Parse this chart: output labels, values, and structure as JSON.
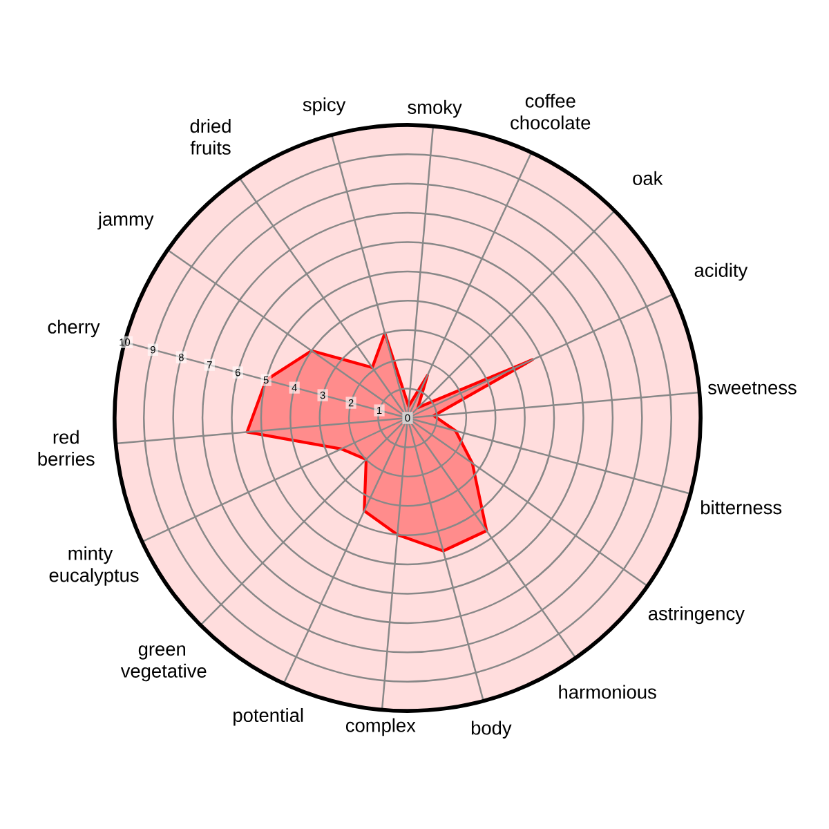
{
  "chart_data": {
    "type": "radar",
    "categories": [
      "smoky",
      "coffee chocolate",
      "oak",
      "acidity",
      "sweetness",
      "bitterness",
      "astringency",
      "harmonious",
      "body",
      "complex",
      "potential",
      "green vegetative",
      "minty eucalyptus",
      "red berries",
      "cherry",
      "jammy",
      "dried fruits",
      "spicy"
    ],
    "series": [
      {
        "color": "#ff0000",
        "values": [
          0.4,
          1.6,
          0.5,
          4.7,
          0.9,
          1.7,
          2.7,
          4.7,
          4.7,
          4.0,
          3.5,
          2.0,
          2.5,
          5.5,
          5.0,
          4.0,
          2.1,
          3.0
        ]
      }
    ],
    "ylim": [
      0,
      10
    ],
    "yticks": [
      0,
      1,
      2,
      3,
      4,
      5,
      6,
      7,
      8,
      9,
      10
    ],
    "grid": true
  }
}
